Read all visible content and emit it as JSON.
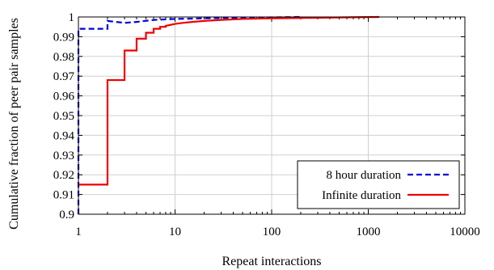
{
  "chart_data": {
    "type": "line",
    "xlabel": "Repeat interactions",
    "ylabel": "Cumulative fraction of peer pair samples",
    "xscale": "log",
    "xlim": [
      1,
      10000
    ],
    "ylim": [
      0.9,
      1.0
    ],
    "grid": true,
    "legend_position": "bottom-right",
    "x_ticks": [
      1,
      10,
      100,
      1000,
      10000
    ],
    "x_tick_labels": [
      "1",
      "10",
      "100",
      "1000",
      "10000"
    ],
    "y_ticks": [
      0.9,
      0.91,
      0.92,
      0.93,
      0.94,
      0.95,
      0.96,
      0.97,
      0.98,
      0.99,
      1.0
    ],
    "y_tick_labels": [
      "0.9",
      "0.91",
      "0.92",
      "0.93",
      "0.94",
      "0.95",
      "0.96",
      "0.97",
      "0.98",
      "0.99",
      "1"
    ],
    "series": [
      {
        "name": "8 hour duration",
        "color": "#0000e0",
        "style": "dashed",
        "step": true,
        "points": [
          [
            1,
            0.9
          ],
          [
            1,
            0.994
          ],
          [
            2,
            0.994
          ],
          [
            2,
            0.998
          ],
          [
            3,
            0.997
          ],
          [
            4,
            0.9975
          ],
          [
            6,
            0.9985
          ],
          [
            10,
            0.999
          ],
          [
            30,
            0.9995
          ],
          [
            100,
            0.9998
          ],
          [
            200,
            1.0
          ]
        ]
      },
      {
        "name": "Infinite duration",
        "color": "#ee0000",
        "style": "solid",
        "step": true,
        "points": [
          [
            1,
            0.915
          ],
          [
            2,
            0.915
          ],
          [
            2,
            0.968
          ],
          [
            3,
            0.968
          ],
          [
            3,
            0.983
          ],
          [
            4,
            0.983
          ],
          [
            4,
            0.989
          ],
          [
            5,
            0.989
          ],
          [
            5,
            0.992
          ],
          [
            6,
            0.992
          ],
          [
            6,
            0.994
          ],
          [
            7,
            0.994
          ],
          [
            7,
            0.995
          ],
          [
            8,
            0.995
          ],
          [
            8,
            0.9955
          ],
          [
            9,
            0.996
          ],
          [
            10,
            0.9965
          ],
          [
            12,
            0.997
          ],
          [
            15,
            0.9975
          ],
          [
            20,
            0.998
          ],
          [
            30,
            0.9985
          ],
          [
            50,
            0.999
          ],
          [
            100,
            0.9993
          ],
          [
            200,
            0.9995
          ],
          [
            400,
            0.9997
          ],
          [
            800,
            0.9999
          ],
          [
            1300,
            1.0
          ]
        ]
      }
    ]
  }
}
